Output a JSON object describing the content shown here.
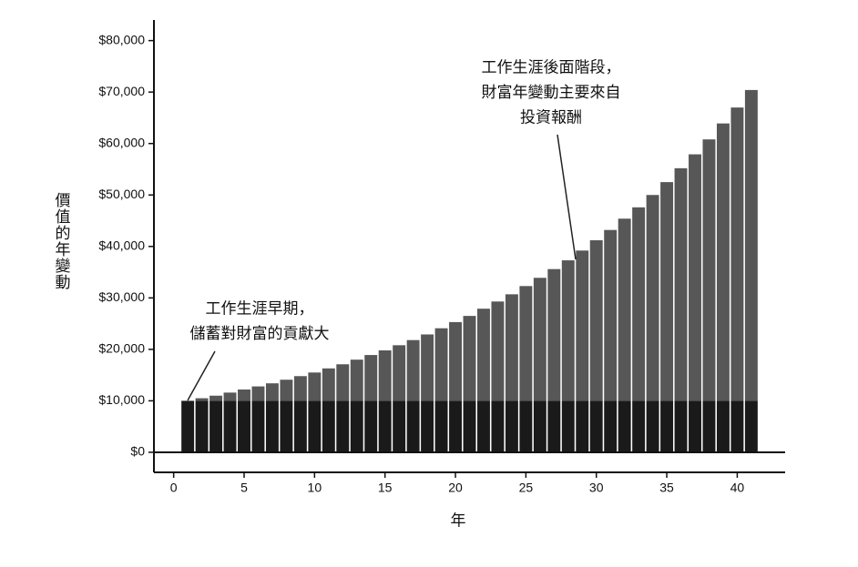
{
  "chart_data": {
    "type": "stacked_bar",
    "x_label": "年",
    "y_label": "價值的年變動",
    "x": [
      1,
      2,
      3,
      4,
      5,
      6,
      7,
      8,
      9,
      10,
      11,
      12,
      13,
      14,
      15,
      16,
      17,
      18,
      19,
      20,
      21,
      22,
      23,
      24,
      25,
      26,
      27,
      28,
      29,
      30,
      31,
      32,
      33,
      34,
      35,
      36,
      37,
      38,
      39,
      40,
      41
    ],
    "series": [
      {
        "color": "#1a1a1a",
        "values": [
          10000,
          10000,
          10000,
          10000,
          10000,
          10000,
          10000,
          10000,
          10000,
          10000,
          10000,
          10000,
          10000,
          10000,
          10000,
          10000,
          10000,
          10000,
          10000,
          10000,
          10000,
          10000,
          10000,
          10000,
          10000,
          10000,
          10000,
          10000,
          10000,
          10000,
          10000,
          10000,
          10000,
          10000,
          10000,
          10000,
          10000,
          10000,
          10000,
          10000,
          10000
        ]
      },
      {
        "color": "#575757",
        "values": [
          0,
          500,
          1000,
          1600,
          2200,
          2800,
          3400,
          4100,
          4800,
          5500,
          6300,
          7100,
          8000,
          8900,
          9800,
          10800,
          11800,
          12900,
          14100,
          15300,
          16500,
          17900,
          19300,
          20700,
          22300,
          23900,
          25600,
          27300,
          29200,
          31200,
          33200,
          35400,
          37600,
          40000,
          42500,
          45200,
          47900,
          50800,
          53900,
          57000,
          60400
        ]
      }
    ],
    "xlim": [
      -1.4,
      43.4
    ],
    "ylim": [
      -3900,
      84000
    ],
    "xticks": [
      0,
      5,
      10,
      15,
      20,
      25,
      30,
      35,
      40
    ],
    "yticks": [
      {
        "value": 0,
        "label": "$0"
      },
      {
        "value": 10000,
        "label": "$10,000"
      },
      {
        "value": 20000,
        "label": "$20,000"
      },
      {
        "value": 30000,
        "label": "$30,000"
      },
      {
        "value": 40000,
        "label": "$40,000"
      },
      {
        "value": 50000,
        "label": "$50,000"
      },
      {
        "value": 60000,
        "label": "$60,000"
      },
      {
        "value": 70000,
        "label": "$70,000"
      },
      {
        "value": 80000,
        "label": "$80,000"
      }
    ],
    "annotations": [
      {
        "lines": [
          "工作生涯早期，",
          "儲蓄對財富的貢獻大"
        ]
      },
      {
        "lines": [
          "工作生涯後面階段，",
          "財富年變動主要來自",
          "投資報酬"
        ]
      }
    ]
  }
}
